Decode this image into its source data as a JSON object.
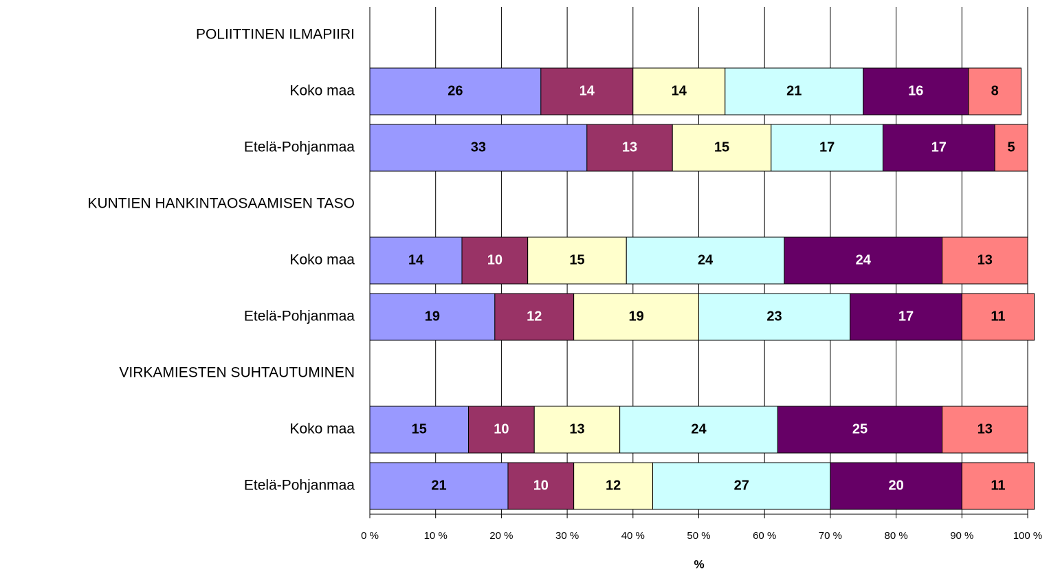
{
  "chart_data": {
    "type": "stacked-barh",
    "x_label": "%",
    "categories": [
      "POLIITTINEN ILMAPIIRI",
      "Koko maa",
      "Etelä-Pohjanmaa",
      "KUNTIEN HANKINTAOSAAMISEN TASO",
      "Koko maa",
      "Etelä-Pohjanmaa",
      "VIRKAMIESTEN SUHTAUTUMINEN",
      "Koko maa",
      "Etelä-Pohjanmaa"
    ],
    "series": [
      {
        "color": "#9999ff",
        "values": [
          null,
          26,
          33,
          null,
          14,
          19,
          null,
          15,
          21
        ]
      },
      {
        "color": "#993366",
        "values": [
          null,
          14,
          13,
          null,
          10,
          12,
          null,
          10,
          10
        ]
      },
      {
        "color": "#ffffcc",
        "values": [
          null,
          14,
          15,
          null,
          15,
          19,
          null,
          13,
          12
        ]
      },
      {
        "color": "#ccffff",
        "values": [
          null,
          21,
          17,
          null,
          24,
          23,
          null,
          24,
          27
        ]
      },
      {
        "color": "#660066",
        "values": [
          null,
          16,
          17,
          null,
          24,
          17,
          null,
          25,
          20
        ]
      },
      {
        "color": "#ff8080",
        "values": [
          null,
          8,
          5,
          null,
          13,
          11,
          null,
          13,
          11
        ]
      }
    ],
    "xlim": [
      0,
      100
    ],
    "xticks": [
      {
        "value": 0,
        "label": "0 %"
      },
      {
        "value": 10,
        "label": "10 %"
      },
      {
        "value": 20,
        "label": "20 %"
      },
      {
        "value": 30,
        "label": "30 %"
      },
      {
        "value": 40,
        "label": "40 %"
      },
      {
        "value": 50,
        "label": "50 %"
      },
      {
        "value": 60,
        "label": "60 %"
      },
      {
        "value": 70,
        "label": "70 %"
      },
      {
        "value": 80,
        "label": "80 %"
      },
      {
        "value": 90,
        "label": "90 %"
      },
      {
        "value": 100,
        "label": "100 %"
      }
    ],
    "grid": true
  }
}
